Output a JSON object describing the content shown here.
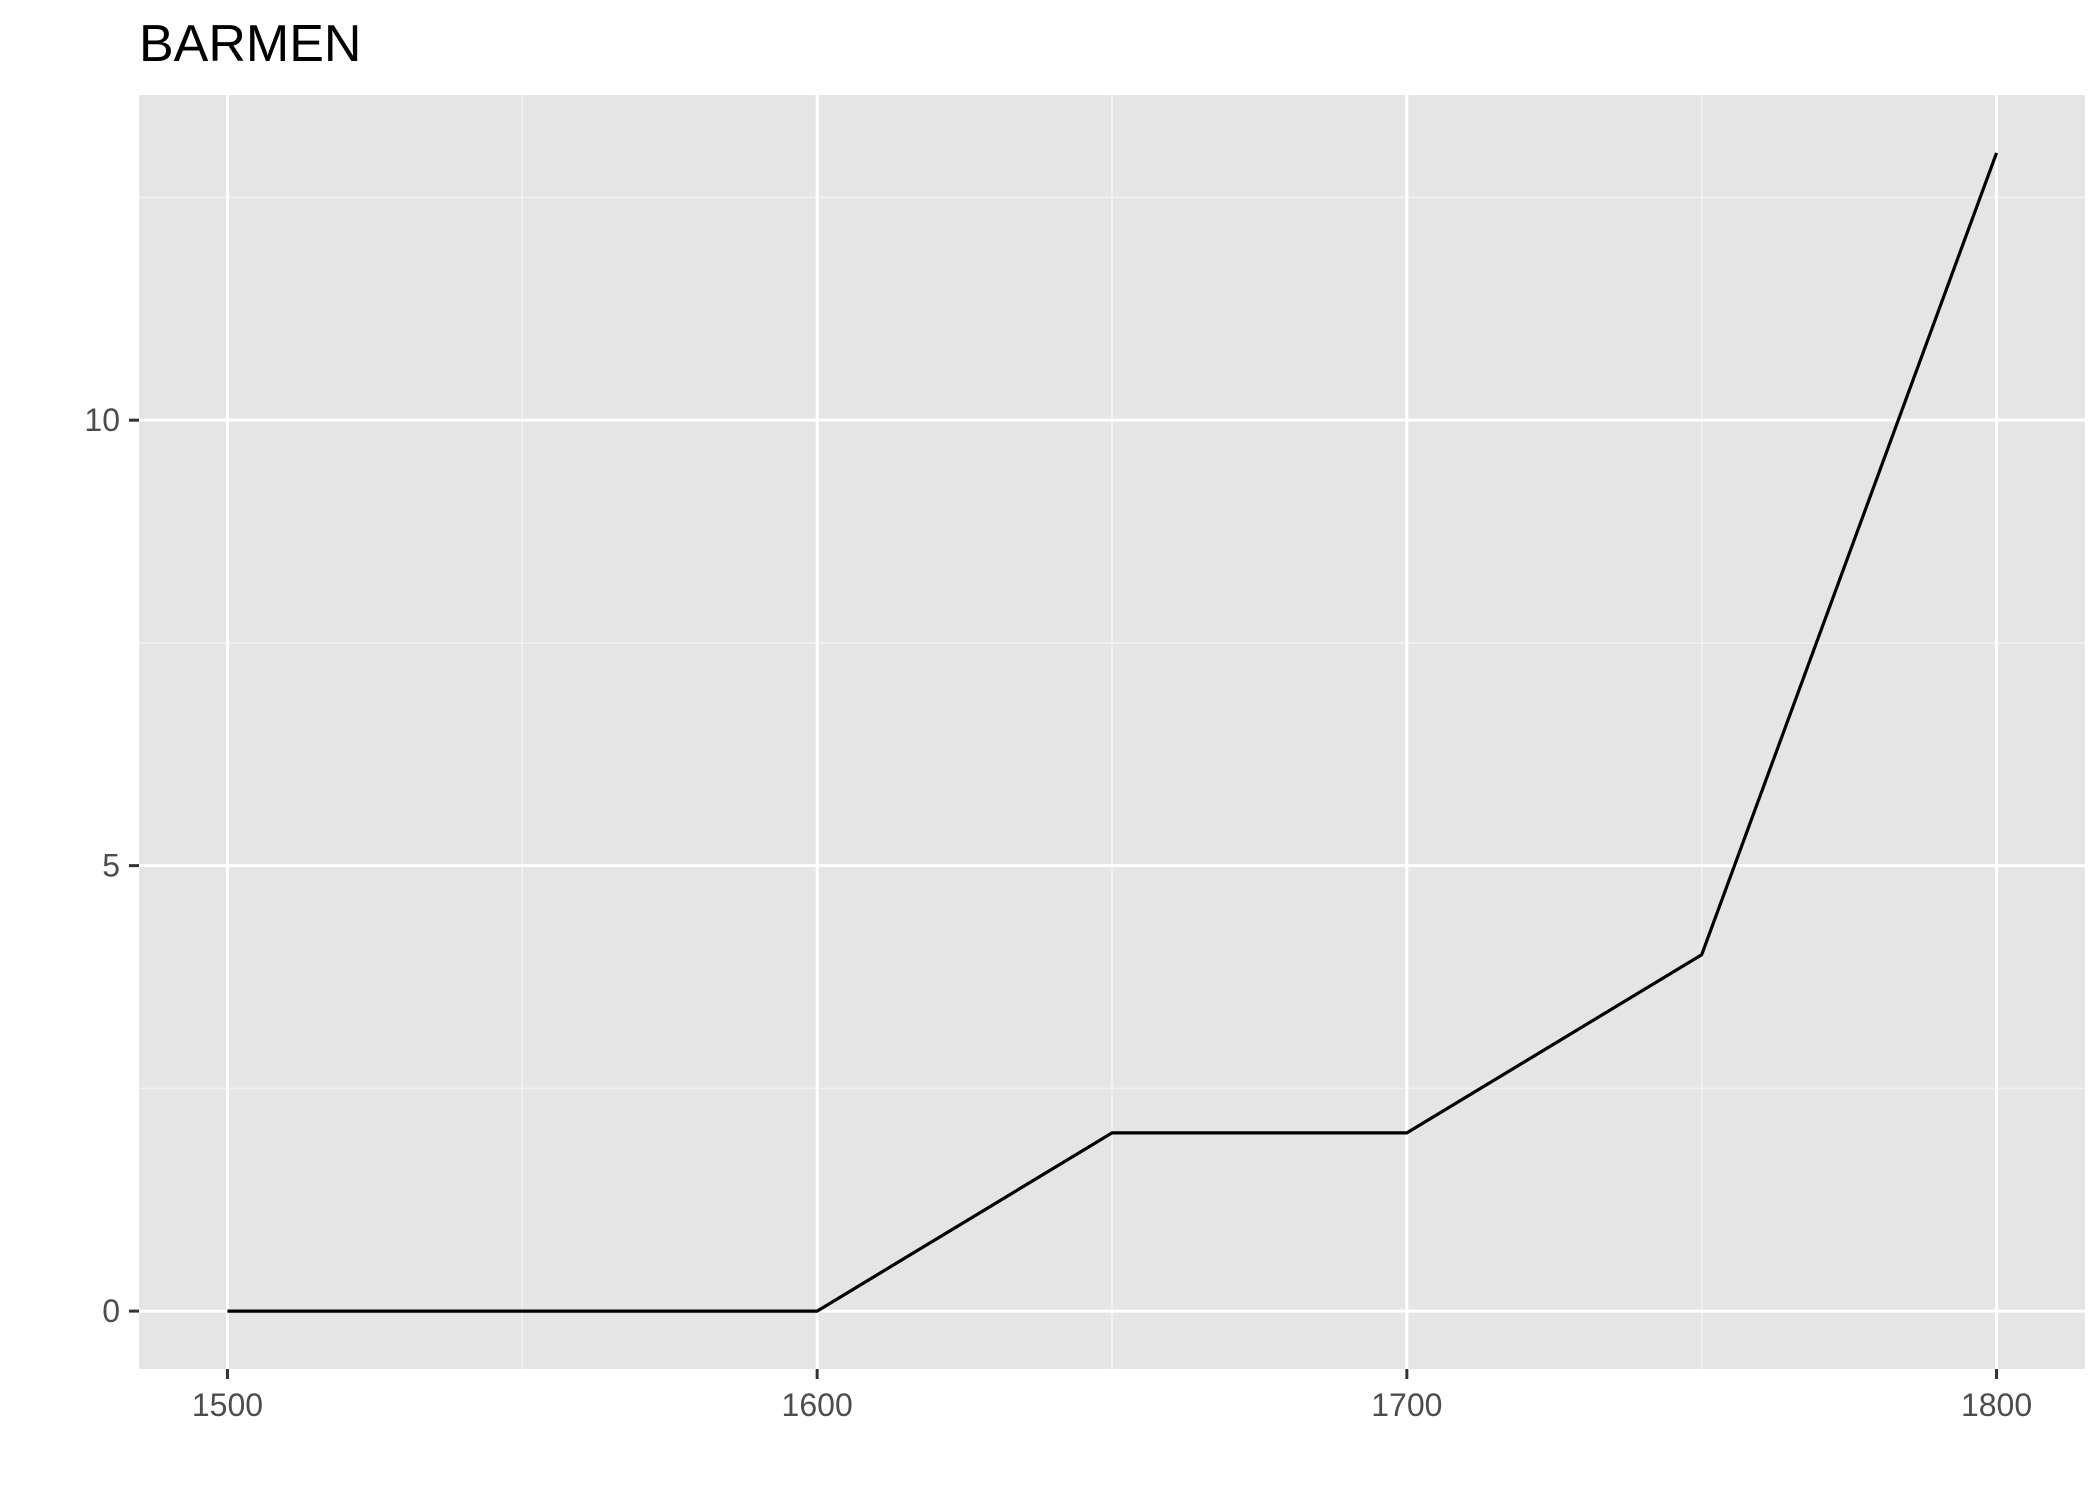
{
  "chart_data": {
    "type": "line",
    "title": "BARMEN",
    "xlabel": "",
    "ylabel": "",
    "x": [
      1500,
      1550,
      1600,
      1650,
      1700,
      1750,
      1800
    ],
    "series": [
      {
        "values": [
          0,
          0,
          0,
          2,
          2,
          4,
          13
        ]
      }
    ],
    "xlim": [
      1485,
      1815
    ],
    "ylim": [
      -0.65,
      13.65
    ],
    "x_ticks": [
      1500,
      1600,
      1700,
      1800
    ],
    "x_tick_labels": [
      "1500",
      "1600",
      "1700",
      "1800"
    ],
    "x_minor_ticks": [
      1550,
      1650,
      1750
    ],
    "y_ticks": [
      0,
      5,
      10
    ],
    "y_tick_labels": [
      "0",
      "5",
      "10"
    ],
    "y_minor_ticks": [
      2.5,
      7.5,
      12.5
    ],
    "grid": true,
    "legend": "none",
    "colors": {
      "panel_background": "#e5e5e5",
      "grid_major": "#ffffff",
      "grid_minor": "#f2f2f2",
      "line": "#000000",
      "tick": "#333333",
      "tick_label": "#4d4d4d",
      "title": "#000000"
    }
  }
}
